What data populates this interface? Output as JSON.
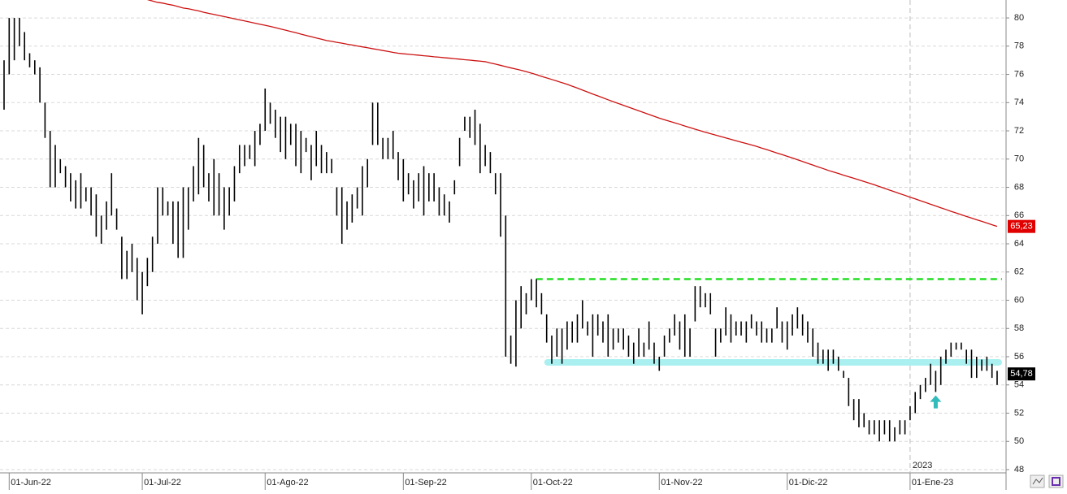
{
  "chart_data": {
    "type": "ohlc",
    "ylim": [
      47.77,
      81.27
    ],
    "yticks": [
      48,
      50,
      52,
      54,
      56,
      58,
      60,
      62,
      64,
      66,
      68,
      70,
      72,
      74,
      76,
      78,
      80
    ],
    "grid": true,
    "bar_color": "#000000",
    "categories": [
      null,
      "01-Jun-22",
      null,
      null,
      null,
      null,
      null,
      null,
      null,
      null,
      null,
      null,
      null,
      null,
      null,
      null,
      null,
      null,
      null,
      null,
      null,
      null,
      null,
      null,
      null,
      null,
      null,
      "01-Jul-22",
      null,
      null,
      null,
      null,
      null,
      null,
      null,
      null,
      null,
      null,
      null,
      null,
      null,
      null,
      null,
      null,
      null,
      null,
      null,
      null,
      null,
      null,
      null,
      "01-Ago-22",
      null,
      null,
      null,
      null,
      null,
      null,
      null,
      null,
      null,
      null,
      null,
      null,
      null,
      null,
      null,
      null,
      null,
      null,
      null,
      null,
      null,
      null,
      null,
      null,
      null,
      null,
      "01-Sep-22",
      null,
      null,
      null,
      null,
      null,
      null,
      null,
      null,
      null,
      null,
      null,
      null,
      null,
      null,
      null,
      null,
      null,
      null,
      null,
      null,
      null,
      null,
      null,
      null,
      "01-Oct-22",
      null,
      null,
      null,
      null,
      null,
      null,
      null,
      null,
      null,
      null,
      null,
      null,
      null,
      null,
      null,
      null,
      null,
      null,
      null,
      null,
      null,
      null,
      null,
      null,
      "01-Nov-22",
      null,
      null,
      null,
      null,
      null,
      null,
      null,
      null,
      null,
      null,
      null,
      null,
      null,
      null,
      null,
      null,
      null,
      null,
      null,
      null,
      null,
      null,
      null,
      null,
      "01-Dic-22",
      null,
      null,
      null,
      null,
      null,
      null,
      null,
      null,
      null,
      null,
      null,
      null,
      null,
      null,
      null,
      null,
      null,
      null,
      null,
      null,
      null,
      null,
      null,
      "01-Ene-23",
      null,
      null,
      null,
      null,
      null,
      null,
      null,
      null,
      null,
      null,
      null,
      null,
      null,
      null,
      null,
      null,
      null
    ],
    "high_low": [
      [
        77,
        73.5
      ],
      [
        80,
        76
      ],
      [
        80,
        77
      ],
      [
        80,
        78
      ],
      [
        79,
        77
      ],
      [
        77.5,
        76.5
      ],
      [
        77,
        76
      ],
      [
        76.5,
        74
      ],
      [
        74,
        71.5
      ],
      [
        72,
        68
      ],
      [
        71,
        68
      ],
      [
        70,
        69
      ],
      [
        69.5,
        68
      ],
      [
        69,
        67
      ],
      [
        68.5,
        66.5
      ],
      [
        69,
        66.5
      ],
      [
        68,
        67
      ],
      [
        68,
        66
      ],
      [
        67.5,
        64.5
      ],
      [
        66,
        64
      ],
      [
        67,
        65
      ],
      [
        69,
        66
      ],
      [
        66.5,
        65
      ],
      [
        64.5,
        61.5
      ],
      [
        63.5,
        61.5
      ],
      [
        64,
        62
      ],
      [
        63,
        60
      ],
      [
        62,
        59
      ],
      [
        63,
        61
      ],
      [
        64.5,
        62
      ],
      [
        68,
        64
      ],
      [
        68,
        66
      ],
      [
        67,
        66
      ],
      [
        67,
        64
      ],
      [
        67,
        63
      ],
      [
        68,
        63
      ],
      [
        68,
        65
      ],
      [
        69.5,
        67
      ],
      [
        71.5,
        67.5
      ],
      [
        71,
        68
      ],
      [
        69,
        67
      ],
      [
        70,
        66
      ],
      [
        69,
        66
      ],
      [
        68,
        65
      ],
      [
        68,
        66
      ],
      [
        69.5,
        67
      ],
      [
        71,
        69
      ],
      [
        71,
        69.5
      ],
      [
        71,
        70
      ],
      [
        72,
        69.5
      ],
      [
        72.5,
        71
      ],
      [
        75,
        72
      ],
      [
        74,
        72.5
      ],
      [
        73.5,
        71.5
      ],
      [
        73,
        70.5
      ],
      [
        73,
        70
      ],
      [
        72.5,
        71
      ],
      [
        72.5,
        69.5
      ],
      [
        72,
        69
      ],
      [
        71.5,
        70.5
      ],
      [
        71,
        68.5
      ],
      [
        72,
        69.5
      ],
      [
        71,
        69
      ],
      [
        70.5,
        69
      ],
      [
        70,
        69
      ],
      [
        68,
        66
      ],
      [
        68,
        64
      ],
      [
        67,
        65
      ],
      [
        67.5,
        65.5
      ],
      [
        68,
        66.5
      ],
      [
        69.5,
        66
      ],
      [
        70,
        68
      ],
      [
        74,
        71
      ],
      [
        74,
        71
      ],
      [
        71.5,
        70
      ],
      [
        71.5,
        70
      ],
      [
        72,
        70
      ],
      [
        70.5,
        68.5
      ],
      [
        70,
        67
      ],
      [
        69,
        67.5
      ],
      [
        68.5,
        66.5
      ],
      [
        69,
        67
      ],
      [
        69.5,
        66
      ],
      [
        69,
        67
      ],
      [
        69,
        67
      ],
      [
        68,
        66
      ],
      [
        67.5,
        66
      ],
      [
        67,
        65.5
      ],
      [
        68.5,
        67.5
      ],
      [
        71.5,
        69.5
      ],
      [
        73,
        72
      ],
      [
        73,
        71.5
      ],
      [
        73.5,
        71
      ],
      [
        72.5,
        69
      ],
      [
        71,
        69.5
      ],
      [
        70.5,
        69
      ],
      [
        69,
        67.5
      ],
      [
        69,
        64.5
      ],
      [
        66,
        56
      ],
      [
        57.5,
        55.5
      ],
      [
        60,
        55.3
      ],
      [
        61,
        58
      ],
      [
        60.5,
        59
      ],
      [
        61.5,
        60
      ],
      [
        61.5,
        59.5
      ],
      [
        60.5,
        59
      ],
      [
        59,
        57
      ],
      [
        57.5,
        55.5
      ],
      [
        58,
        56
      ],
      [
        58,
        55.5
      ],
      [
        58.5,
        56.5
      ],
      [
        58.5,
        57
      ],
      [
        59,
        57
      ],
      [
        60,
        58
      ],
      [
        58.5,
        57.5
      ],
      [
        59,
        56
      ],
      [
        59,
        57.5
      ],
      [
        58.5,
        57
      ],
      [
        59,
        56
      ],
      [
        58,
        56.5
      ],
      [
        58,
        57
      ],
      [
        58,
        56.5
      ],
      [
        57.5,
        56
      ],
      [
        57,
        55.5
      ],
      [
        58,
        56
      ],
      [
        57,
        56
      ],
      [
        58.5,
        56.5
      ],
      [
        57,
        55.5
      ],
      [
        56,
        55
      ],
      [
        57.5,
        56
      ],
      [
        58,
        57
      ],
      [
        59,
        57.5
      ],
      [
        58.5,
        56.5
      ],
      [
        59,
        56
      ],
      [
        58,
        56
      ],
      [
        61,
        58.5
      ],
      [
        61,
        59.5
      ],
      [
        60.5,
        59.5
      ],
      [
        60.5,
        59
      ],
      [
        58,
        56
      ],
      [
        58,
        57
      ],
      [
        59.5,
        57.5
      ],
      [
        59,
        57
      ],
      [
        58.5,
        57.5
      ],
      [
        58.5,
        57.5
      ],
      [
        58.5,
        57
      ],
      [
        59,
        58
      ],
      [
        58.5,
        57.5
      ],
      [
        58.5,
        57
      ],
      [
        58,
        57
      ],
      [
        58,
        57
      ],
      [
        59.5,
        58
      ],
      [
        58.5,
        57
      ],
      [
        58.5,
        56.5
      ],
      [
        59,
        57.5
      ],
      [
        59.5,
        58
      ],
      [
        59,
        57.5
      ],
      [
        58.5,
        57
      ],
      [
        58,
        56
      ],
      [
        57,
        55.5
      ],
      [
        56.5,
        55.5
      ],
      [
        56.5,
        55
      ],
      [
        56.5,
        55.5
      ],
      [
        56,
        55
      ],
      [
        55,
        54.5
      ],
      [
        54.5,
        52.5
      ],
      [
        53,
        51.5
      ],
      [
        53,
        51
      ],
      [
        52,
        51
      ],
      [
        51.5,
        50.5
      ],
      [
        51.5,
        50.5
      ],
      [
        51.5,
        50
      ],
      [
        51.5,
        50.5
      ],
      [
        51.5,
        50
      ],
      [
        51,
        50
      ],
      [
        51.5,
        50.5
      ],
      [
        51.5,
        50.5
      ],
      [
        52.5,
        51.5
      ],
      [
        53.5,
        52
      ],
      [
        54,
        53
      ],
      [
        54.5,
        53.5
      ],
      [
        55.5,
        54
      ],
      [
        55,
        53.5
      ],
      [
        56,
        54
      ],
      [
        56.5,
        55.5
      ],
      [
        57,
        56
      ],
      [
        57,
        56.5
      ],
      [
        57,
        56.5
      ],
      [
        56.5,
        55.5
      ],
      [
        56.5,
        54.5
      ],
      [
        56,
        54.5
      ],
      [
        55.8,
        55
      ],
      [
        56,
        55
      ],
      [
        55.5,
        54.5
      ],
      [
        55,
        54
      ]
    ],
    "moving_average": {
      "color": "#cc1111",
      "values": [
        null,
        null,
        null,
        null,
        null,
        null,
        null,
        null,
        null,
        null,
        null,
        null,
        null,
        null,
        null,
        null,
        null,
        null,
        null,
        null,
        null,
        null,
        null,
        null,
        null,
        null,
        null,
        null,
        81.3,
        81.2,
        81.1,
        81.05,
        80.97,
        80.9,
        80.8,
        80.7,
        80.65,
        80.57,
        80.5,
        80.4,
        80.32,
        80.25,
        80.17,
        80.1,
        80.02,
        79.94,
        79.86,
        79.79,
        79.71,
        79.63,
        79.55,
        79.48,
        79.4,
        79.31,
        79.22,
        79.13,
        79.04,
        78.95,
        78.85,
        78.76,
        78.67,
        78.58,
        78.49,
        78.4,
        78.34,
        78.27,
        78.21,
        78.14,
        78.08,
        78.01,
        77.95,
        77.89,
        77.82,
        77.76,
        77.69,
        77.63,
        77.56,
        77.5,
        77.46,
        77.43,
        77.39,
        77.36,
        77.32,
        77.29,
        77.25,
        77.22,
        77.18,
        77.15,
        77.11,
        77.08,
        77.04,
        77.01,
        76.97,
        76.94,
        76.9,
        76.81,
        76.73,
        76.64,
        76.55,
        76.46,
        76.38,
        76.29,
        76.2,
        76.09,
        75.98,
        75.86,
        75.75,
        75.64,
        75.53,
        75.41,
        75.3,
        75.16,
        75.03,
        74.89,
        74.75,
        74.61,
        74.48,
        74.34,
        74.2,
        74.07,
        73.94,
        73.81,
        73.68,
        73.55,
        73.42,
        73.29,
        73.16,
        73.03,
        72.9,
        72.79,
        72.68,
        72.57,
        72.46,
        72.34,
        72.23,
        72.12,
        72.01,
        71.9,
        71.8,
        71.7,
        71.6,
        71.5,
        71.4,
        71.3,
        71.2,
        71.1,
        71.0,
        70.9,
        70.78,
        70.67,
        70.55,
        70.43,
        70.32,
        70.2,
        70.08,
        69.95,
        69.83,
        69.7,
        69.58,
        69.45,
        69.33,
        69.2,
        69.09,
        68.98,
        68.86,
        68.75,
        68.64,
        68.53,
        68.41,
        68.3,
        68.18,
        68.05,
        67.93,
        67.8,
        67.68,
        67.55,
        67.43,
        67.3,
        67.18,
        67.05,
        66.93,
        66.8,
        66.68,
        66.55,
        66.43,
        66.3,
        66.18,
        66.06,
        65.94,
        65.82,
        65.7,
        65.59,
        65.47,
        65.35,
        65.23
      ]
    },
    "ma_last": {
      "value": 65.23,
      "label": "65,23"
    },
    "last_price": {
      "value": 54.78,
      "label": "54,78"
    },
    "resistance": {
      "value": 61.5,
      "color": "#22dd22"
    },
    "support": {
      "value": 55.6,
      "color": "#aaf0f0"
    },
    "arrow": {
      "value": 52.8,
      "color": "#33bbbb"
    },
    "year_label": "2023"
  }
}
